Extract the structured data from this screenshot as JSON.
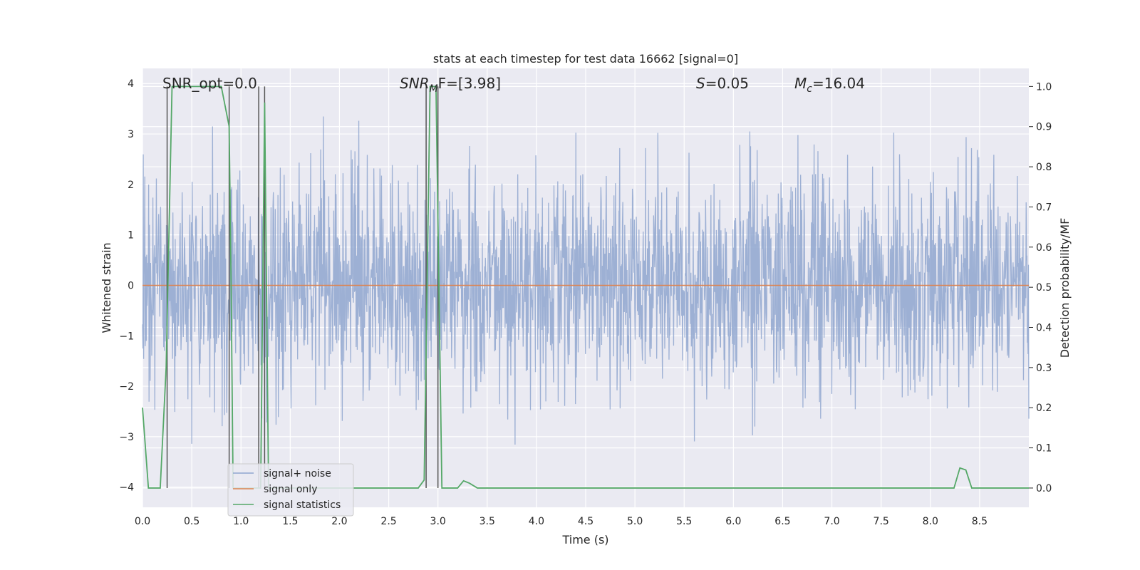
{
  "chart_data": {
    "type": "line",
    "title": "stats at each timestep for test data 16662 [signal=0]",
    "xlabel": "Time (s)",
    "ylabel": "Whitened strain",
    "y2label": "Detection probability/MF",
    "xlim": [
      0.0,
      9.0
    ],
    "ylim": [
      -4.4,
      4.3
    ],
    "y2lim": [
      -0.048,
      1.045
    ],
    "xticks": [
      0.0,
      0.5,
      1.0,
      1.5,
      2.0,
      2.5,
      3.0,
      3.5,
      4.0,
      4.5,
      5.0,
      5.5,
      6.0,
      6.5,
      7.0,
      7.5,
      8.0,
      8.5
    ],
    "xtick_labels": [
      "0.0",
      "0.5",
      "1.0",
      "1.5",
      "2.0",
      "2.5",
      "3.0",
      "3.5",
      "4.0",
      "4.5",
      "5.0",
      "5.5",
      "6.0",
      "6.5",
      "7.0",
      "7.5",
      "8.0",
      "8.5"
    ],
    "yticks": [
      -4,
      -3,
      -2,
      -1,
      0,
      1,
      2,
      3,
      4
    ],
    "ytick_labels": [
      "−4",
      "−3",
      "−2",
      "−1",
      "0",
      "1",
      "2",
      "3",
      "4"
    ],
    "y2ticks": [
      0.0,
      0.1,
      0.2,
      0.3,
      0.4,
      0.5,
      0.6,
      0.7,
      0.8,
      0.9,
      1.0
    ],
    "y2tick_labels": [
      "0.0",
      "0.1",
      "0.2",
      "0.3",
      "0.4",
      "0.5",
      "0.6",
      "0.7",
      "0.8",
      "0.9",
      "1.0"
    ],
    "grid": true,
    "legend_position": "bottom-left",
    "legend": [
      {
        "name": "signal+ noise",
        "color": "#8fa6cf"
      },
      {
        "name": "signal only",
        "color": "#dd8452"
      },
      {
        "name": "signal statistics",
        "color": "#55a868"
      }
    ],
    "annotations": {
      "snr_opt": "SNR_opt=0.0",
      "snr_mf_main": "SNR",
      "snr_mf_sub": "M",
      "snr_mf_rest": "F=[3.98]",
      "s_main": "S",
      "s_rest": "=0.05",
      "mc_main": "M",
      "mc_sub": "c",
      "mc_rest": "=16.04"
    },
    "noise": {
      "name": "signal+ noise",
      "n_points": 2304,
      "sigma": 1.05,
      "seed": 16662,
      "envelope_pos": [
        [
          0.0,
          2.6
        ],
        [
          0.5,
          3.3
        ],
        [
          1.0,
          3.4
        ],
        [
          1.5,
          3.5
        ],
        [
          2.0,
          3.8
        ],
        [
          2.5,
          3.0
        ],
        [
          3.0,
          3.4
        ],
        [
          3.5,
          3.5
        ],
        [
          4.0,
          3.2
        ],
        [
          4.5,
          3.0
        ],
        [
          5.0,
          3.0
        ],
        [
          5.5,
          3.2
        ],
        [
          6.0,
          3.1
        ],
        [
          6.5,
          3.3
        ],
        [
          7.0,
          3.1
        ],
        [
          7.5,
          3.5
        ],
        [
          8.0,
          3.5
        ],
        [
          8.5,
          2.8
        ],
        [
          9.0,
          2.9
        ]
      ],
      "envelope_neg": [
        [
          0.0,
          -2.4
        ],
        [
          0.5,
          -3.6
        ],
        [
          1.0,
          -3.2
        ],
        [
          1.5,
          -3.0
        ],
        [
          2.0,
          -3.2
        ],
        [
          2.5,
          -3.5
        ],
        [
          3.0,
          -3.6
        ],
        [
          3.5,
          -3.3
        ],
        [
          4.0,
          -3.4
        ],
        [
          4.5,
          -3.7
        ],
        [
          5.0,
          -3.4
        ],
        [
          5.5,
          -3.4
        ],
        [
          6.0,
          -4.0
        ],
        [
          6.5,
          -3.3
        ],
        [
          7.0,
          -3.3
        ],
        [
          7.5,
          -3.2
        ],
        [
          8.0,
          -3.4
        ],
        [
          8.5,
          -3.4
        ],
        [
          9.0,
          -3.7
        ]
      ]
    },
    "signal_only": {
      "name": "signal only",
      "x": [
        0.0,
        9.0
      ],
      "y": [
        0.0,
        0.0
      ]
    },
    "signal_statistics": {
      "name": "signal statistics",
      "x": [
        0.0,
        0.06,
        0.18,
        0.24,
        0.3,
        0.36,
        0.48,
        0.6,
        0.72,
        0.8,
        0.88,
        0.9,
        0.92,
        0.96,
        1.0,
        1.06,
        1.14,
        1.2,
        1.24,
        1.28,
        1.32,
        1.4,
        1.6,
        1.8,
        2.0,
        2.4,
        2.8,
        2.86,
        2.92,
        2.98,
        3.04,
        3.08,
        3.12,
        3.2,
        3.26,
        3.32,
        3.4,
        3.6,
        4.0,
        5.0,
        6.0,
        7.0,
        8.0,
        8.24,
        8.3,
        8.36,
        8.42,
        8.5,
        8.7,
        9.0
      ],
      "y": [
        0.2,
        0.0,
        0.0,
        0.3,
        1.0,
        1.0,
        1.0,
        1.0,
        1.0,
        1.0,
        0.9,
        0.5,
        0.0,
        0.0,
        0.0,
        0.0,
        0.0,
        0.0,
        0.96,
        0.0,
        0.0,
        0.0,
        0.0,
        0.0,
        0.0,
        0.0,
        0.0,
        0.02,
        1.0,
        1.0,
        0.0,
        0.0,
        0.0,
        0.0,
        0.018,
        0.012,
        0.0,
        0.0,
        0.0,
        0.0,
        0.0,
        0.0,
        0.0,
        0.0,
        0.05,
        0.045,
        0.0,
        0.0,
        0.0,
        0.0
      ]
    },
    "vertical_markers": [
      0.25,
      0.88,
      1.18,
      1.24,
      2.88,
      3.0
    ]
  }
}
